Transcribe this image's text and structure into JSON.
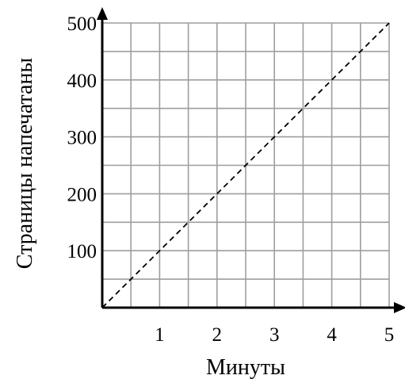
{
  "chart_data": {
    "type": "line",
    "title": "",
    "xlabel": "Минуты",
    "ylabel": "Страницы напечатаны",
    "xlim": [
      0,
      5
    ],
    "ylim": [
      0,
      500
    ],
    "x_ticks": [
      1,
      2,
      3,
      4,
      5
    ],
    "x_tick_labels": [
      "1",
      "2",
      "3",
      "4",
      "5"
    ],
    "y_ticks": [
      100,
      200,
      300,
      400,
      500
    ],
    "y_tick_labels": [
      "100",
      "200",
      "300",
      "400",
      "500"
    ],
    "x_minor_step": 0.5,
    "y_minor_step": 50,
    "grid": true,
    "series": [
      {
        "line_style": "dashed",
        "x": [
          0,
          5
        ],
        "y": [
          0,
          500
        ]
      }
    ]
  },
  "colors": {
    "grid": "#9e9e9e",
    "axis": "#000000",
    "line": "#000000"
  }
}
